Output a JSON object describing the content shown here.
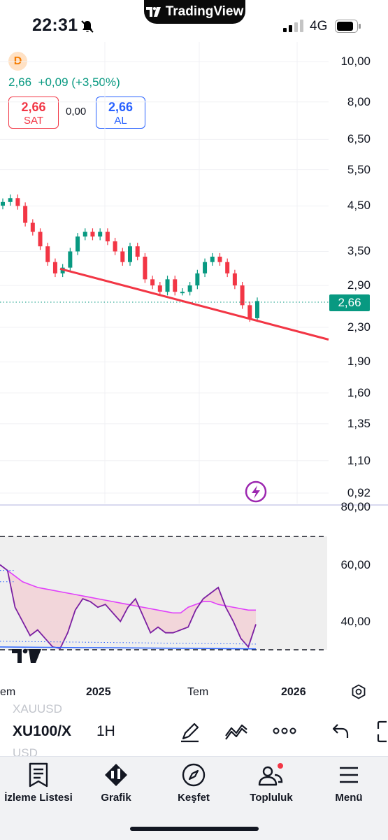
{
  "status_bar": {
    "time": "22:31",
    "app_pill": "TradingView",
    "network": "4G"
  },
  "header": {
    "symbol_badge": "D",
    "price": "2,66",
    "change": "+0,09",
    "change_pct": "(+3,50%)",
    "sell": {
      "value": "2,66",
      "label": "SAT"
    },
    "spread": "0,00",
    "buy": {
      "value": "2,66",
      "label": "AL"
    }
  },
  "price_axis": [
    "10,00",
    "8,00",
    "6,50",
    "5,50",
    "4,50",
    "3,50",
    "2,90",
    "2,30",
    "1,90",
    "1,60",
    "1,35",
    "1,10",
    "0,92"
  ],
  "last_price_label": "2,66",
  "rsi_axis": [
    "80,00",
    "60,00",
    "40,00"
  ],
  "time_axis": [
    "em",
    "2025",
    "Tem",
    "2026"
  ],
  "chart_data": [
    {
      "type": "candlestick",
      "title": "",
      "y_scale": "log",
      "ylim": [
        0.9,
        10.5
      ],
      "x": [
        "2024-07",
        "2025",
        "Tem",
        "2026"
      ],
      "approx_close_path": [
        4.6,
        4.7,
        4.5,
        4.1,
        3.9,
        3.6,
        3.3,
        3.1,
        3.2,
        3.5,
        3.8,
        3.9,
        3.8,
        3.9,
        3.7,
        3.5,
        3.3,
        3.6,
        3.4,
        3.0,
        2.9,
        2.8,
        3.0,
        2.8,
        2.8,
        2.9,
        3.1,
        3.3,
        3.4,
        3.3,
        3.1,
        2.9,
        2.6,
        2.42,
        2.66
      ],
      "trendline": {
        "from": [
          "2024-10",
          3.18
        ],
        "to": [
          "2026",
          2.15
        ],
        "color": "#f23645"
      },
      "last": 2.66
    },
    {
      "type": "line",
      "title": "",
      "ylim": [
        30,
        80
      ],
      "series": [
        {
          "values": [
            60,
            58,
            45,
            40,
            35,
            37,
            34,
            31,
            30.5,
            36,
            44,
            48,
            47,
            45,
            46,
            43,
            40,
            45,
            48,
            42,
            36,
            38,
            36,
            36,
            37,
            38,
            44,
            48,
            50,
            52,
            45,
            40,
            34,
            31,
            39
          ],
          "color": "#7b1fa2"
        },
        {
          "values": [
            60,
            58,
            56,
            54,
            53,
            52,
            51.5,
            51,
            50.5,
            50,
            49.5,
            49,
            48.5,
            48,
            47.5,
            47,
            46.5,
            46,
            45.5,
            45,
            44.5,
            44,
            43.5,
            43,
            43,
            45,
            46,
            47,
            47,
            46,
            45.5,
            45,
            44.5,
            44,
            44
          ],
          "color": "#e040fb"
        }
      ],
      "bands": [
        70,
        50,
        30
      ]
    }
  ],
  "toolbar": {
    "symbol": "XU100/X",
    "symbol_ghost_top": "XAUUSD",
    "symbol_ghost_bottom": "USD",
    "timeframe": "1H"
  },
  "nav": [
    {
      "label": "İzleme Listesi",
      "icon": "watchlist-icon"
    },
    {
      "label": "Grafik",
      "icon": "chart-icon"
    },
    {
      "label": "Keşfet",
      "icon": "compass-icon"
    },
    {
      "label": "Topluluk",
      "icon": "community-icon"
    },
    {
      "label": "Menü",
      "icon": "menu-icon"
    }
  ]
}
